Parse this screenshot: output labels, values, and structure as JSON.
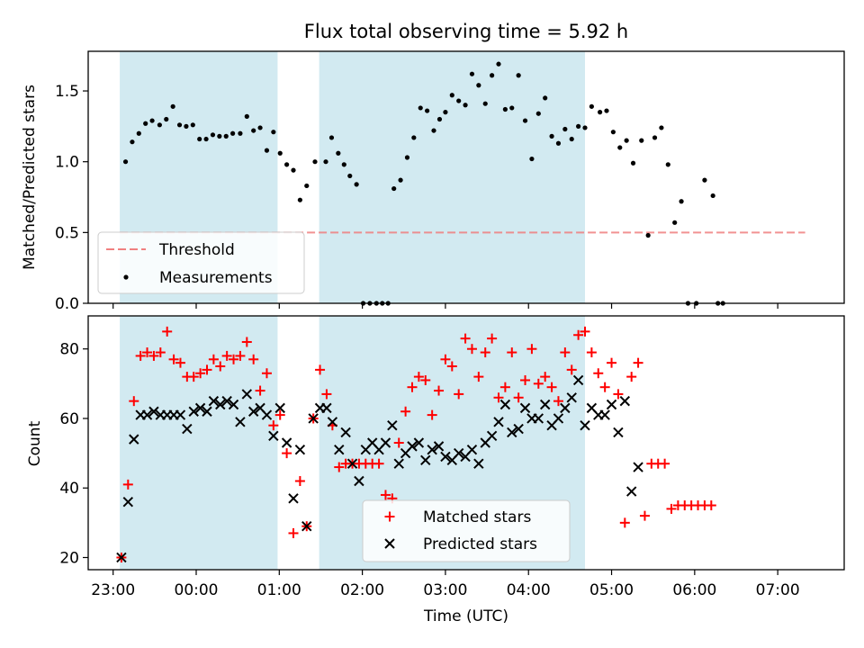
{
  "figure": {
    "title": "Flux total observing time = 5.92 h",
    "xlabel": "Time (UTC)",
    "x_ticks": [
      "23:00",
      "00:00",
      "01:00",
      "02:00",
      "03:00",
      "04:00",
      "05:00",
      "06:00",
      "07:00"
    ],
    "shaded_color": "#add8e6",
    "threshold_color": "#f08080",
    "matched_color": "#ff0000",
    "predicted_color": "#000000"
  },
  "chart_data": [
    {
      "type": "scatter",
      "ylabel": "Matched/Predicted stars",
      "xlim": [
        -0.3,
        8.8
      ],
      "ylim": [
        0,
        1.78
      ],
      "y_ticks": [
        0.0,
        0.5,
        1.0,
        1.5
      ],
      "y_tick_labels": [
        "0.0",
        "0.5",
        "1.0",
        "1.5"
      ],
      "x_unit": "hours since 23:00 UTC",
      "shaded_regions": [
        [
          0.08,
          1.98
        ],
        [
          2.48,
          5.68
        ]
      ],
      "threshold": {
        "label": "Threshold",
        "value": 0.5,
        "x_range": [
          0.08,
          8.33
        ]
      },
      "legend": {
        "position": "lower-left",
        "entries": [
          "Threshold",
          "Measurements"
        ]
      },
      "series": [
        {
          "name": "Measurements",
          "x": [
            0.15,
            0.23,
            0.31,
            0.39,
            0.47,
            0.56,
            0.64,
            0.72,
            0.8,
            0.88,
            0.96,
            1.04,
            1.12,
            1.2,
            1.28,
            1.36,
            1.44,
            1.53,
            1.61,
            1.69,
            1.77,
            1.85,
            1.93,
            2.01,
            2.09,
            2.17,
            2.25,
            2.33,
            2.43,
            2.56,
            2.63,
            2.71,
            2.78,
            2.85,
            2.93,
            3.01,
            3.09,
            3.17,
            3.24,
            3.31,
            3.38,
            3.46,
            3.54,
            3.62,
            3.7,
            3.78,
            3.86,
            3.93,
            4.0,
            4.08,
            4.16,
            4.24,
            4.32,
            4.4,
            4.48,
            4.56,
            4.64,
            4.72,
            4.8,
            4.88,
            4.96,
            5.04,
            5.12,
            5.2,
            5.28,
            5.36,
            5.44,
            5.52,
            5.6,
            5.68,
            5.76,
            5.86,
            5.94,
            6.02,
            6.1,
            6.18,
            6.26,
            6.36,
            6.44,
            6.52,
            6.6,
            6.68,
            6.76,
            6.84,
            6.92,
            7.02,
            7.12,
            7.22,
            7.28,
            7.34
          ],
          "y": [
            1.0,
            1.14,
            1.2,
            1.27,
            1.29,
            1.26,
            1.3,
            1.39,
            1.26,
            1.25,
            1.26,
            1.16,
            1.16,
            1.19,
            1.18,
            1.18,
            1.2,
            1.2,
            1.32,
            1.22,
            1.24,
            1.08,
            1.21,
            1.06,
            0.98,
            0.94,
            0.73,
            0.83,
            1.0,
            1.0,
            1.17,
            1.06,
            0.98,
            0.9,
            0.84,
            0.0,
            0.0,
            0.0,
            0.0,
            0.0,
            0.81,
            0.87,
            1.03,
            1.17,
            1.38,
            1.36,
            1.22,
            1.3,
            1.35,
            1.47,
            1.43,
            1.4,
            1.62,
            1.54,
            1.41,
            1.61,
            1.69,
            1.37,
            1.38,
            1.61,
            1.29,
            1.02,
            1.34,
            1.45,
            1.18,
            1.13,
            1.23,
            1.16,
            1.25,
            1.24,
            1.39,
            1.35,
            1.36,
            1.21,
            1.1,
            1.15,
            0.99,
            1.15,
            0.48,
            1.17,
            1.24,
            0.98,
            0.57,
            0.72,
            0.0,
            0.0,
            0.87,
            0.76,
            0.0,
            0.0
          ]
        }
      ]
    },
    {
      "type": "scatter",
      "ylabel": "Count",
      "xlabel": "Time (UTC)",
      "xlim": [
        -0.3,
        8.8
      ],
      "ylim": [
        16.5,
        89.5
      ],
      "y_ticks": [
        20,
        40,
        60,
        80
      ],
      "y_tick_labels": [
        "20",
        "40",
        "60",
        "80"
      ],
      "x_unit": "hours since 23:00 UTC",
      "shaded_regions": [
        [
          0.08,
          1.98
        ],
        [
          2.48,
          5.68
        ]
      ],
      "legend": {
        "position": "lower-center",
        "entries": [
          "Matched stars",
          "Predicted stars"
        ]
      },
      "series": [
        {
          "name": "Matched stars",
          "marker": "+",
          "x": [
            0.1,
            0.18,
            0.25,
            0.33,
            0.41,
            0.49,
            0.57,
            0.65,
            0.73,
            0.81,
            0.89,
            0.97,
            1.05,
            1.13,
            1.21,
            1.29,
            1.37,
            1.45,
            1.53,
            1.61,
            1.69,
            1.77,
            1.85,
            1.93,
            2.01,
            2.09,
            2.17,
            2.25,
            2.33,
            2.41,
            2.49,
            2.57,
            2.64,
            2.72,
            2.8,
            2.88,
            2.96,
            3.04,
            3.12,
            3.2,
            3.28,
            3.36,
            3.44,
            3.52,
            3.6,
            3.68,
            3.76,
            3.84,
            3.92,
            4.0,
            4.08,
            4.16,
            4.24,
            4.32,
            4.4,
            4.48,
            4.56,
            4.64,
            4.72,
            4.8,
            4.88,
            4.96,
            5.04,
            5.12,
            5.2,
            5.28,
            5.36,
            5.44,
            5.52,
            5.6,
            5.68,
            5.76,
            5.84,
            5.92,
            6.0,
            6.08,
            6.16,
            6.24,
            6.32,
            6.4,
            6.48,
            6.56,
            6.64,
            6.72,
            6.8,
            6.88,
            6.96,
            7.04,
            7.12,
            7.2
          ],
          "y": [
            20,
            41,
            65,
            78,
            79,
            78,
            79,
            85,
            77,
            76,
            72,
            72,
            73,
            74,
            77,
            75,
            78,
            77,
            78,
            82,
            77,
            68,
            73,
            58,
            61,
            50,
            27,
            42,
            29,
            60,
            74,
            67,
            58,
            46,
            47,
            47,
            47,
            47,
            47,
            47,
            38,
            37,
            53,
            62,
            69,
            72,
            71,
            61,
            68,
            77,
            75,
            67,
            83,
            80,
            72,
            79,
            83,
            66,
            69,
            79,
            66,
            71,
            80,
            70,
            72,
            69,
            65,
            79,
            74,
            84,
            85,
            79,
            73,
            69,
            76,
            67,
            30,
            72,
            76,
            32,
            47,
            47,
            47,
            34,
            35,
            35,
            35,
            35,
            35,
            35
          ],
          "x_fix": null
        },
        {
          "name": "Predicted stars",
          "marker": "x",
          "x": [
            0.1,
            0.18,
            0.25,
            0.33,
            0.41,
            0.49,
            0.57,
            0.65,
            0.73,
            0.81,
            0.89,
            0.97,
            1.05,
            1.13,
            1.21,
            1.29,
            1.37,
            1.45,
            1.53,
            1.61,
            1.69,
            1.77,
            1.85,
            1.93,
            2.01,
            2.09,
            2.17,
            2.25,
            2.33,
            2.41,
            2.49,
            2.57,
            2.64,
            2.72,
            2.8,
            2.88,
            2.96,
            3.04,
            3.12,
            3.2,
            3.28,
            3.36,
            3.44,
            3.52,
            3.6,
            3.68,
            3.76,
            3.84,
            3.92,
            4.0,
            4.08,
            4.16,
            4.24,
            4.32,
            4.4,
            4.48,
            4.56,
            4.64,
            4.72,
            4.8,
            4.88,
            4.96,
            5.04,
            5.12,
            5.2,
            5.28,
            5.36,
            5.44,
            5.52,
            5.6,
            5.68,
            5.76,
            5.84,
            5.92,
            6.0,
            6.08,
            6.16,
            6.24,
            6.32
          ],
          "y": [
            20,
            36,
            54,
            61,
            61,
            62,
            61,
            61,
            61,
            61,
            57,
            62,
            63,
            62,
            65,
            64,
            65,
            64,
            59,
            67,
            62,
            63,
            61,
            55,
            63,
            53,
            37,
            51,
            29,
            60,
            63,
            63,
            59,
            51,
            56,
            47,
            42,
            51,
            53,
            51,
            53,
            58,
            47,
            50,
            52,
            53,
            48,
            51,
            52,
            49,
            48,
            50,
            49,
            51,
            47,
            53,
            55,
            59,
            64,
            56,
            57,
            63,
            60,
            60,
            64,
            58,
            60,
            63,
            66,
            71,
            58,
            63,
            61,
            61,
            64,
            56,
            65,
            39,
            46
          ]
        }
      ]
    }
  ]
}
